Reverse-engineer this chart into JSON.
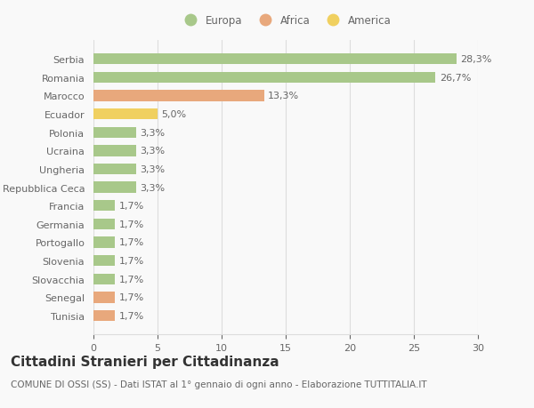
{
  "categories": [
    "Tunisia",
    "Senegal",
    "Slovacchia",
    "Slovenia",
    "Portogallo",
    "Germania",
    "Francia",
    "Repubblica Ceca",
    "Ungheria",
    "Ucraina",
    "Polonia",
    "Ecuador",
    "Marocco",
    "Romania",
    "Serbia"
  ],
  "values": [
    1.7,
    1.7,
    1.7,
    1.7,
    1.7,
    1.7,
    1.7,
    3.3,
    3.3,
    3.3,
    3.3,
    5.0,
    13.3,
    26.7,
    28.3
  ],
  "labels": [
    "1,7%",
    "1,7%",
    "1,7%",
    "1,7%",
    "1,7%",
    "1,7%",
    "1,7%",
    "3,3%",
    "3,3%",
    "3,3%",
    "3,3%",
    "5,0%",
    "13,3%",
    "26,7%",
    "28,3%"
  ],
  "colors": [
    "#e8a87c",
    "#e8a87c",
    "#a8c88a",
    "#a8c88a",
    "#a8c88a",
    "#a8c88a",
    "#a8c88a",
    "#a8c88a",
    "#a8c88a",
    "#a8c88a",
    "#a8c88a",
    "#f0d060",
    "#e8a87c",
    "#a8c88a",
    "#a8c88a"
  ],
  "legend": [
    {
      "label": "Europa",
      "color": "#a8c88a"
    },
    {
      "label": "Africa",
      "color": "#e8a87c"
    },
    {
      "label": "America",
      "color": "#f0d060"
    }
  ],
  "title": "Cittadini Stranieri per Cittadinanza",
  "subtitle": "COMUNE DI OSSI (SS) - Dati ISTAT al 1° gennaio di ogni anno - Elaborazione TUTTITALIA.IT",
  "xlim": [
    0,
    30
  ],
  "xticks": [
    0,
    5,
    10,
    15,
    20,
    25,
    30
  ],
  "background_color": "#f9f9f9",
  "bar_height": 0.6,
  "grid_color": "#dddddd",
  "text_color": "#666666",
  "label_fontsize": 8,
  "title_fontsize": 11,
  "subtitle_fontsize": 7.5
}
